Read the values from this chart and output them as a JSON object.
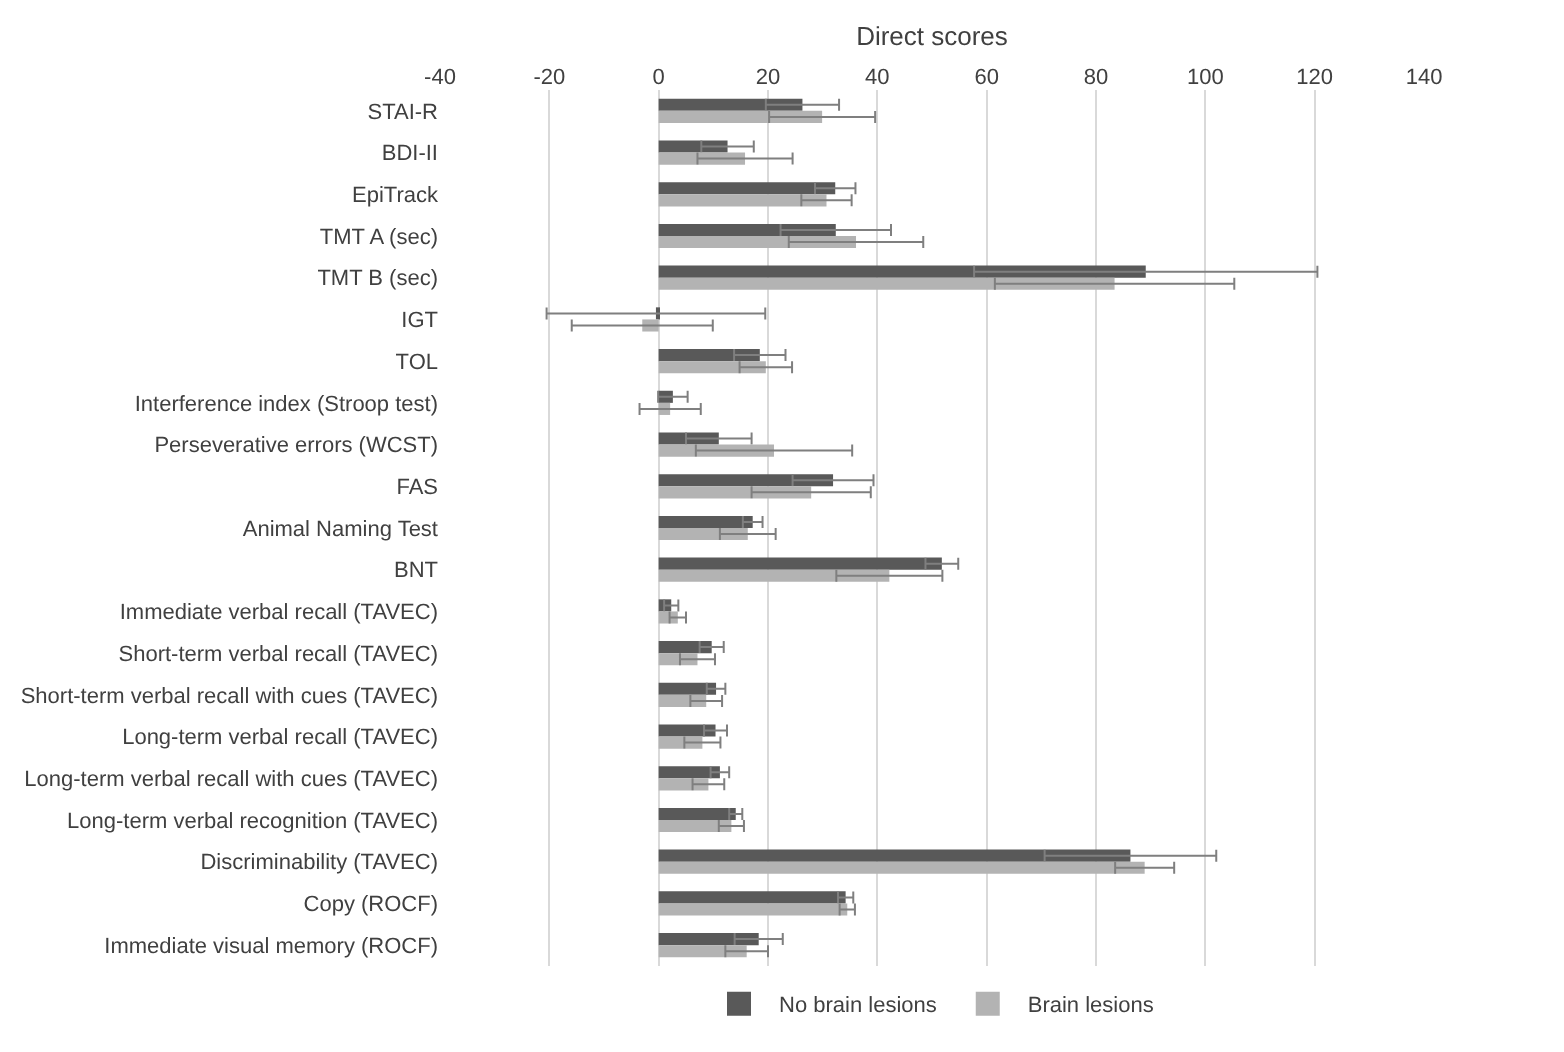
{
  "chart_data": {
    "type": "bar",
    "orientation": "horizontal",
    "xlabel": "Direct scores",
    "categories": [
      "STAI-R",
      "BDI-II",
      "EpiTrack",
      "TMT A (sec)",
      "TMT B (sec)",
      "IGT",
      "TOL",
      "Interference index (Stroop test)",
      "Perseverative errors (WCST)",
      "FAS",
      "Animal Naming Test",
      "BNT",
      "Immediate verbal recall (TAVEC)",
      "Short-term verbal recall (TAVEC)",
      "Short-term verbal recall with cues (TAVEC)",
      "Long-term verbal recall (TAVEC)",
      "Long-term verbal recall with cues (TAVEC)",
      "Long-term verbal recognition (TAVEC)",
      "Discriminability (TAVEC)",
      "Copy (ROCF)",
      "Immediate visual memory (ROCF)"
    ],
    "series": [
      {
        "name": "No brain lesions",
        "color": "#595959",
        "values": [
          26.3,
          12.6,
          32.3,
          32.4,
          89.1,
          -0.5,
          18.5,
          2.6,
          11,
          31.9,
          17.2,
          51.8,
          2.3,
          9.7,
          10.5,
          10.4,
          11.2,
          14.1,
          86.3,
          34.2,
          18.3
        ],
        "errors": [
          6.7,
          4.8,
          3.7,
          10.1,
          31.4,
          20,
          4.7,
          2.7,
          6,
          7.4,
          1.8,
          3,
          1.3,
          2.2,
          1.7,
          2.1,
          1.7,
          1.2,
          15.7,
          1.4,
          4.4
        ]
      },
      {
        "name": "Brain lesions",
        "color": "#b3b3b3",
        "values": [
          29.9,
          15.8,
          30.7,
          36.1,
          83.4,
          -3,
          19.6,
          2.1,
          21.1,
          27.9,
          16.3,
          42.2,
          3.5,
          7.1,
          8.7,
          8,
          9.1,
          13.3,
          88.9,
          34.5,
          16.1
        ],
        "errors": [
          9.7,
          8.7,
          4.6,
          12.3,
          21.9,
          12.9,
          4.8,
          5.6,
          14.3,
          10.9,
          5.1,
          9.7,
          1.5,
          3.2,
          2.9,
          3.3,
          2.9,
          2.3,
          5.4,
          1.4,
          3.9
        ]
      }
    ],
    "xlim": [
      -40,
      140
    ],
    "xticks": [
      -40,
      -20,
      0,
      20,
      40,
      60,
      80,
      100,
      120,
      140
    ],
    "grid": "x",
    "legend": "bottom"
  }
}
